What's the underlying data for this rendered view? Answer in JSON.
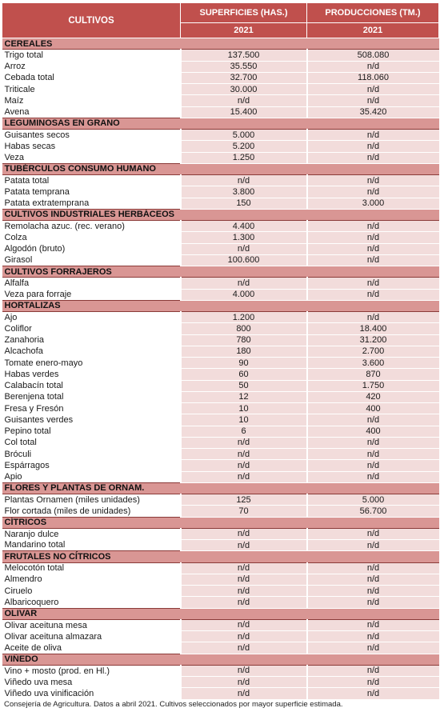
{
  "header": {
    "cultivos": "CULTIVOS",
    "superficies": "SUPERFICIES (HAS.)",
    "producciones": "PRODUCCIONES (TM.)",
    "year_sup": "2021",
    "year_prod": "2021"
  },
  "sections": [
    {
      "title": "CEREALES",
      "rows": [
        {
          "name": "Trigo total",
          "sup": "137.500",
          "prod": "508.080"
        },
        {
          "name": "Arroz",
          "sup": "35.550",
          "prod": "n/d"
        },
        {
          "name": "Cebada total",
          "sup": "32.700",
          "prod": "118.060"
        },
        {
          "name": "Triticale",
          "sup": "30.000",
          "prod": "n/d"
        },
        {
          "name": "Maíz",
          "sup": "n/d",
          "prod": "n/d"
        },
        {
          "name": "Avena",
          "sup": "15.400",
          "prod": "35.420"
        }
      ]
    },
    {
      "title": "LEGUMINOSAS EN GRANO",
      "rows": [
        {
          "name": "Guisantes secos",
          "sup": "5.000",
          "prod": "n/d"
        },
        {
          "name": "Habas secas",
          "sup": "5.200",
          "prod": "n/d"
        },
        {
          "name": "Veza",
          "sup": "1.250",
          "prod": "n/d"
        }
      ]
    },
    {
      "title": "TUBÉRCULOS CONSUMO HUMANO",
      "rows": [
        {
          "name": "Patata total",
          "sup": "n/d",
          "prod": "n/d"
        },
        {
          "name": "Patata temprana",
          "sup": "3.800",
          "prod": "n/d"
        },
        {
          "name": "Patata extratemprana",
          "sup": "150",
          "prod": "3.000"
        }
      ]
    },
    {
      "title": "CULTIVOS INDUSTRIALES HERBÁCEOS",
      "rows": [
        {
          "name": "Remolacha azuc. (rec. verano)",
          "sup": "4.400",
          "prod": "n/d"
        },
        {
          "name": "Colza",
          "sup": "1.300",
          "prod": "n/d"
        },
        {
          "name": "Algodón (bruto)",
          "sup": "n/d",
          "prod": "n/d"
        },
        {
          "name": "Girasol",
          "sup": "100.600",
          "prod": "n/d"
        }
      ]
    },
    {
      "title": "CULTIVOS FORRAJEROS",
      "rows": [
        {
          "name": "Alfalfa",
          "sup": "n/d",
          "prod": "n/d"
        },
        {
          "name": "Veza para forraje",
          "sup": "4.000",
          "prod": "n/d"
        }
      ]
    },
    {
      "title": "HORTALIZAS",
      "rows": [
        {
          "name": "Ajo",
          "sup": "1.200",
          "prod": "n/d"
        },
        {
          "name": "Coliflor",
          "sup": "800",
          "prod": "18.400"
        },
        {
          "name": "Zanahoria",
          "sup": "780",
          "prod": "31.200"
        },
        {
          "name": "Alcachofa",
          "sup": "180",
          "prod": "2.700"
        },
        {
          "name": "Tomate enero-mayo",
          "sup": "90",
          "prod": "3.600"
        },
        {
          "name": "Habas verdes",
          "sup": "60",
          "prod": "870"
        },
        {
          "name": "Calabacín total",
          "sup": "50",
          "prod": "1.750"
        },
        {
          "name": "Berenjena total",
          "sup": "12",
          "prod": "420"
        },
        {
          "name": "Fresa y Fresón",
          "sup": "10",
          "prod": "400"
        },
        {
          "name": "Guisantes verdes",
          "sup": "10",
          "prod": "n/d"
        },
        {
          "name": "Pepino total",
          "sup": "6",
          "prod": "400"
        },
        {
          "name": "Col total",
          "sup": "n/d",
          "prod": "n/d"
        },
        {
          "name": "Bróculi",
          "sup": "n/d",
          "prod": "n/d"
        },
        {
          "name": "Espárragos",
          "sup": "n/d",
          "prod": "n/d"
        },
        {
          "name": "Apio",
          "sup": "n/d",
          "prod": "n/d"
        }
      ]
    },
    {
      "title": "FLORES Y PLANTAS DE ORNAM.",
      "rows": [
        {
          "name": "Plantas Ornamen (miles unidades)",
          "sup": "125",
          "prod": "5.000"
        },
        {
          "name": "Flor cortada (miles de unidades)",
          "sup": "70",
          "prod": "56.700"
        }
      ]
    },
    {
      "title": "CÍTRICOS",
      "rows": [
        {
          "name": "Naranjo dulce",
          "sup": "n/d",
          "prod": "n/d"
        },
        {
          "name": "Mandarino total",
          "sup": "n/d",
          "prod": "n/d"
        }
      ]
    },
    {
      "title": "FRUTALES NO CÍTRICOS",
      "rows": [
        {
          "name": "Melocotón total",
          "sup": "n/d",
          "prod": "n/d"
        },
        {
          "name": "Almendro",
          "sup": "n/d",
          "prod": "n/d"
        },
        {
          "name": "Ciruelo",
          "sup": "n/d",
          "prod": "n/d"
        },
        {
          "name": "Albaricoquero",
          "sup": "n/d",
          "prod": "n/d"
        }
      ]
    },
    {
      "title": "OLIVAR",
      "rows": [
        {
          "name": "Olivar aceituna mesa",
          "sup": "n/d",
          "prod": "n/d"
        },
        {
          "name": "Olivar aceituna almazara",
          "sup": "n/d",
          "prod": "n/d"
        },
        {
          "name": "Aceite de oliva",
          "sup": "n/d",
          "prod": "n/d"
        }
      ]
    },
    {
      "title": "VIÑEDO",
      "rows": [
        {
          "name": "Vino + mosto (prod. en Hl.)",
          "sup": "n/d",
          "prod": "n/d"
        },
        {
          "name": "Viñedo uva mesa",
          "sup": "n/d",
          "prod": "n/d"
        },
        {
          "name": "Viñedo uva vinificación",
          "sup": "n/d",
          "prod": "n/d"
        }
      ]
    }
  ],
  "footer": "Consejería de Agricultura. Datos a abril 2021. Cultivos seleccionados por mayor superficie estimada."
}
